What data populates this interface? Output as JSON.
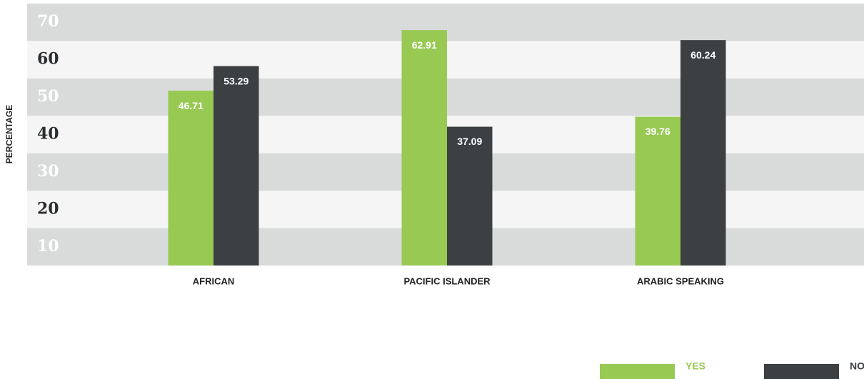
{
  "chart_data": {
    "type": "bar",
    "y_label": "PERCENTAGE",
    "categories": [
      "AFRICAN",
      "PACIFIC ISLANDER",
      "ARABIC SPEAKING"
    ],
    "series": [
      {
        "name": "YES",
        "color": "#97c953",
        "values": [
          46.71,
          62.91,
          39.76
        ]
      },
      {
        "name": "NO",
        "color": "#3c4043",
        "values": [
          53.29,
          37.09,
          60.24
        ]
      }
    ],
    "ylim": [
      0,
      70
    ],
    "yticks": [
      10,
      20,
      30,
      40,
      50,
      60,
      70
    ],
    "band_colors": [
      "#d9dada",
      "#f4f5f4"
    ]
  }
}
